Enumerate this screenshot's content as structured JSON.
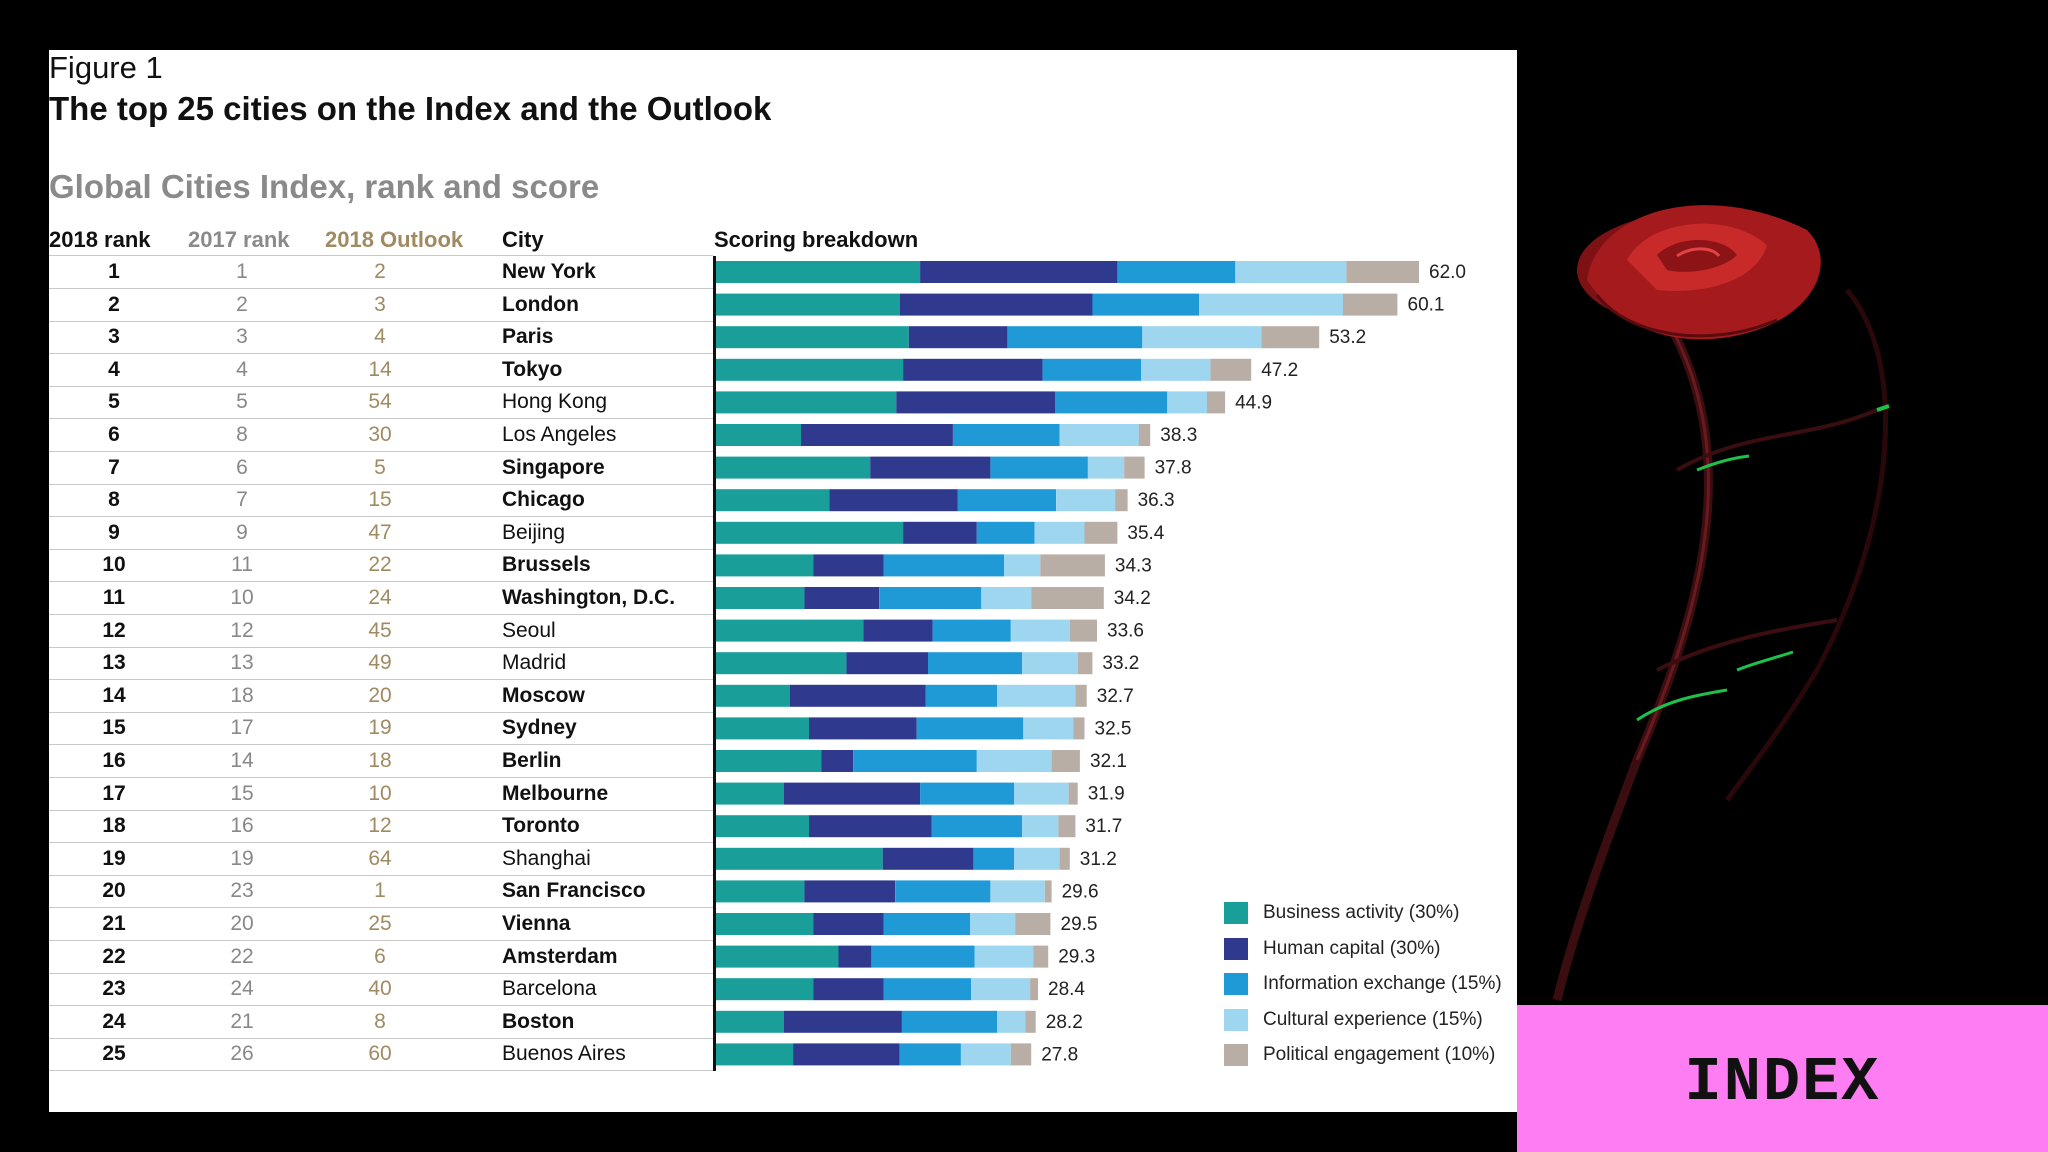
{
  "figure_label": "Figure 1",
  "title": "The top 25 cities on the Index and the Outlook",
  "subtitle": "Global Cities Index, rank and score",
  "headers": {
    "rank_2018": "2018 rank",
    "rank_2017": "2017 rank",
    "outlook_2018": "2018 Outlook",
    "city": "City",
    "breakdown": "Scoring breakdown"
  },
  "colors": {
    "business": "#1a9e9a",
    "human": "#2f3a8f",
    "information": "#1f9ad6",
    "cultural": "#9fd6ef",
    "political": "#b8aea5"
  },
  "chart_data": {
    "type": "bar",
    "orientation": "horizontal",
    "stacked": true,
    "xlim": [
      0,
      62
    ],
    "categories": [
      "New York",
      "London",
      "Paris",
      "Tokyo",
      "Hong Kong",
      "Los Angeles",
      "Singapore",
      "Chicago",
      "Beijing",
      "Brussels",
      "Washington, D.C.",
      "Seoul",
      "Madrid",
      "Moscow",
      "Sydney",
      "Berlin",
      "Melbourne",
      "Toronto",
      "Shanghai",
      "San Francisco",
      "Vienna",
      "Amsterdam",
      "Barcelona",
      "Boston",
      "Buenos Aires"
    ],
    "series": [
      {
        "name": "Business activity (30%)",
        "values": [
          18.0,
          16.2,
          17.0,
          16.5,
          15.9,
          7.5,
          13.6,
          10.0,
          16.5,
          8.6,
          7.8,
          13.0,
          11.5,
          6.5,
          8.2,
          9.3,
          6.0,
          8.2,
          14.7,
          7.8,
          8.6,
          10.8,
          8.6,
          6.0,
          6.8
        ]
      },
      {
        "name": "Human capital (30%)",
        "values": [
          17.4,
          17.0,
          8.7,
          12.3,
          14.0,
          13.4,
          10.6,
          11.3,
          6.5,
          6.2,
          6.6,
          6.1,
          7.2,
          12.0,
          9.5,
          2.8,
          12.0,
          10.8,
          8.0,
          8.0,
          6.2,
          2.9,
          6.2,
          10.4,
          9.4
        ]
      },
      {
        "name": "Information exchange (15%)",
        "values": [
          10.4,
          9.4,
          11.9,
          8.7,
          9.9,
          9.4,
          8.6,
          8.7,
          5.1,
          10.6,
          9.0,
          6.9,
          8.3,
          6.3,
          9.4,
          10.9,
          8.3,
          8.0,
          3.6,
          8.4,
          7.6,
          9.1,
          7.7,
          8.4,
          5.4
        ]
      },
      {
        "name": "Cultural experience (15%)",
        "values": [
          9.8,
          12.7,
          10.5,
          6.1,
          3.5,
          7.0,
          3.2,
          5.2,
          4.4,
          3.2,
          4.4,
          5.2,
          4.9,
          6.9,
          4.4,
          6.6,
          4.8,
          3.2,
          4.0,
          4.8,
          4.0,
          5.2,
          5.2,
          2.5,
          4.4
        ]
      },
      {
        "name": "Political engagement (10%)",
        "values": [
          6.4,
          4.8,
          5.1,
          3.6,
          1.6,
          1.0,
          1.8,
          1.1,
          2.9,
          5.7,
          6.4,
          2.4,
          1.3,
          1.0,
          1.0,
          2.5,
          0.8,
          1.5,
          0.9,
          0.6,
          3.1,
          1.3,
          0.7,
          0.9,
          1.8
        ]
      }
    ],
    "totals": [
      "62.0",
      "60.1",
      "53.2",
      "47.2",
      "44.9",
      "38.3",
      "37.8",
      "36.3",
      "35.4",
      "34.3",
      "34.2",
      "33.6",
      "33.2",
      "32.7",
      "32.5",
      "32.1",
      "31.9",
      "31.7",
      "31.2",
      "29.6",
      "29.5",
      "29.3",
      "28.4",
      "28.2",
      "27.8"
    ],
    "legend_placement": "bottom-right"
  },
  "table": [
    {
      "rank_2018": "1",
      "rank_2017": "1",
      "outlook": "2",
      "city": "New York",
      "bold": true
    },
    {
      "rank_2018": "2",
      "rank_2017": "2",
      "outlook": "3",
      "city": "London",
      "bold": true
    },
    {
      "rank_2018": "3",
      "rank_2017": "3",
      "outlook": "4",
      "city": "Paris",
      "bold": true
    },
    {
      "rank_2018": "4",
      "rank_2017": "4",
      "outlook": "14",
      "city": "Tokyo",
      "bold": true
    },
    {
      "rank_2018": "5",
      "rank_2017": "5",
      "outlook": "54",
      "city": "Hong Kong",
      "bold": false
    },
    {
      "rank_2018": "6",
      "rank_2017": "8",
      "outlook": "30",
      "city": "Los Angeles",
      "bold": false
    },
    {
      "rank_2018": "7",
      "rank_2017": "6",
      "outlook": "5",
      "city": "Singapore",
      "bold": true
    },
    {
      "rank_2018": "8",
      "rank_2017": "7",
      "outlook": "15",
      "city": "Chicago",
      "bold": true
    },
    {
      "rank_2018": "9",
      "rank_2017": "9",
      "outlook": "47",
      "city": "Beijing",
      "bold": false
    },
    {
      "rank_2018": "10",
      "rank_2017": "11",
      "outlook": "22",
      "city": "Brussels",
      "bold": true
    },
    {
      "rank_2018": "11",
      "rank_2017": "10",
      "outlook": "24",
      "city": "Washington, D.C.",
      "bold": true
    },
    {
      "rank_2018": "12",
      "rank_2017": "12",
      "outlook": "45",
      "city": "Seoul",
      "bold": false
    },
    {
      "rank_2018": "13",
      "rank_2017": "13",
      "outlook": "49",
      "city": "Madrid",
      "bold": false
    },
    {
      "rank_2018": "14",
      "rank_2017": "18",
      "outlook": "20",
      "city": "Moscow",
      "bold": true
    },
    {
      "rank_2018": "15",
      "rank_2017": "17",
      "outlook": "19",
      "city": "Sydney",
      "bold": true
    },
    {
      "rank_2018": "16",
      "rank_2017": "14",
      "outlook": "18",
      "city": "Berlin",
      "bold": true
    },
    {
      "rank_2018": "17",
      "rank_2017": "15",
      "outlook": "10",
      "city": "Melbourne",
      "bold": true
    },
    {
      "rank_2018": "18",
      "rank_2017": "16",
      "outlook": "12",
      "city": "Toronto",
      "bold": true
    },
    {
      "rank_2018": "19",
      "rank_2017": "19",
      "outlook": "64",
      "city": "Shanghai",
      "bold": false
    },
    {
      "rank_2018": "20",
      "rank_2017": "23",
      "outlook": "1",
      "city": "San Francisco",
      "bold": true
    },
    {
      "rank_2018": "21",
      "rank_2017": "20",
      "outlook": "25",
      "city": "Vienna",
      "bold": true
    },
    {
      "rank_2018": "22",
      "rank_2017": "22",
      "outlook": "6",
      "city": "Amsterdam",
      "bold": true
    },
    {
      "rank_2018": "23",
      "rank_2017": "24",
      "outlook": "40",
      "city": "Barcelona",
      "bold": false
    },
    {
      "rank_2018": "24",
      "rank_2017": "21",
      "outlook": "8",
      "city": "Boston",
      "bold": true
    },
    {
      "rank_2018": "25",
      "rank_2017": "26",
      "outlook": "60",
      "city": "Buenos Aires",
      "bold": false
    }
  ],
  "side_banner": {
    "label": "INDEX",
    "color": "#ff7df3"
  },
  "rose_image": {
    "icon": "red-rose-icon"
  }
}
